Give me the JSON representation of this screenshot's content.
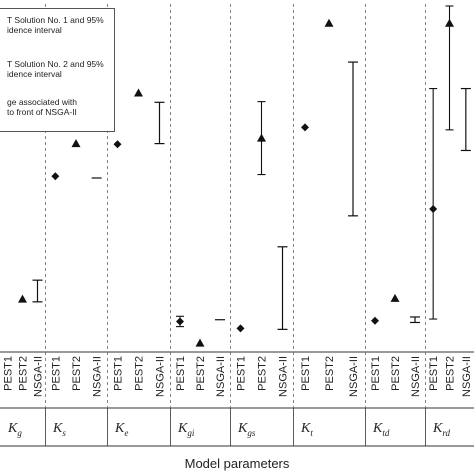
{
  "chart_data": {
    "type": "scatter",
    "xlabel": "Model parameters",
    "y_axis_visible": false,
    "ylim": [
      0,
      1
    ],
    "grid": "dashed vertical separators between parameter groups",
    "groups": [
      {
        "label": "K",
        "sub": "g"
      },
      {
        "label": "K",
        "sub": "s"
      },
      {
        "label": "K",
        "sub": "e"
      },
      {
        "label": "K",
        "sub": "gi"
      },
      {
        "label": "K",
        "sub": "gs"
      },
      {
        "label": "K",
        "sub": "t"
      },
      {
        "label": "K",
        "sub": "td"
      },
      {
        "label": "K",
        "sub": "rd"
      }
    ],
    "subcategories": [
      "PEST1",
      "PEST2",
      "NSGA-II"
    ],
    "series": [
      {
        "legend_lines": [
          "T Solution No. 1 and 95%",
          "idence interval"
        ],
        "marker": "diamond",
        "points": [
          {
            "group": 0,
            "y": null
          },
          {
            "group": 1,
            "y": 0.505
          },
          {
            "group": 2,
            "y": 0.598
          },
          {
            "group": 3,
            "y": 0.083,
            "err": [
              0.068,
              0.098
            ]
          },
          {
            "group": 4,
            "y": 0.063
          },
          {
            "group": 5,
            "y": 0.647
          },
          {
            "group": 6,
            "y": 0.085
          },
          {
            "group": 7,
            "y": 0.41,
            "err": [
              0.09,
              0.76
            ]
          }
        ]
      },
      {
        "legend_lines": [
          "T Solution No. 2 and 95%",
          "idence interval"
        ],
        "marker": "triangle",
        "points": [
          {
            "group": 0,
            "y": 0.148
          },
          {
            "group": 1,
            "y": 0.6
          },
          {
            "group": 2,
            "y": 0.747
          },
          {
            "group": 3,
            "y": 0.02
          },
          {
            "group": 4,
            "y": 0.616,
            "err": [
              0.51,
              0.722
            ]
          },
          {
            "group": 5,
            "y": 0.95
          },
          {
            "group": 6,
            "y": 0.15
          },
          {
            "group": 7,
            "y": 0.95,
            "err": [
              0.64,
              1.0
            ]
          }
        ]
      },
      {
        "legend_lines": [
          "ge associated with",
          "to front of NSGA-II"
        ],
        "marker": "range",
        "points": [
          {
            "group": 0,
            "lo": 0.14,
            "hi": 0.203
          },
          {
            "group": 1,
            "lo": 0.5,
            "hi": 0.5
          },
          {
            "group": 2,
            "lo": 0.6,
            "hi": 0.72
          },
          {
            "group": 3,
            "lo": 0.088,
            "hi": 0.088
          },
          {
            "group": 4,
            "lo": 0.06,
            "hi": 0.3
          },
          {
            "group": 5,
            "lo": 0.39,
            "hi": 0.837
          },
          {
            "group": 6,
            "lo": 0.08,
            "hi": 0.096
          },
          {
            "group": 7,
            "lo": 0.58,
            "hi": 0.76
          }
        ]
      }
    ]
  }
}
